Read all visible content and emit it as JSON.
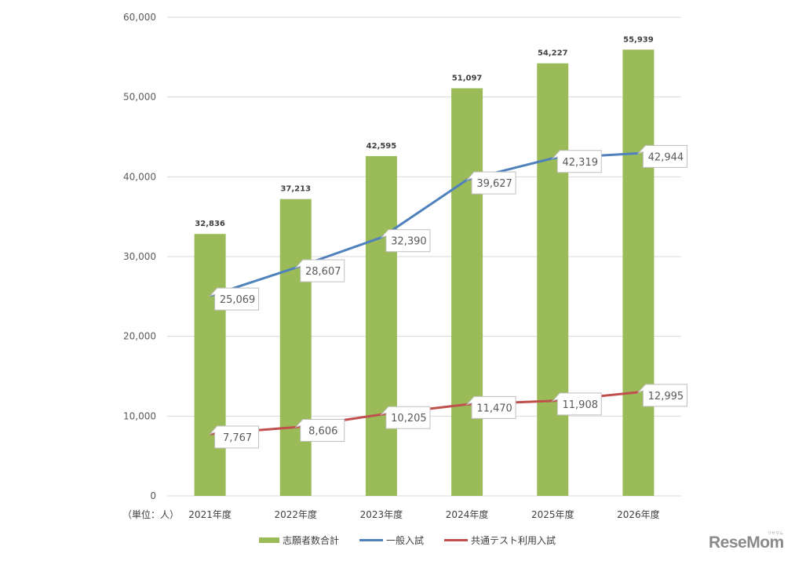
{
  "chart_data": {
    "type": "bar+line",
    "title": "",
    "unit_label": "（単位：人）",
    "categories": [
      "2021年度",
      "2022年度",
      "2023年度",
      "2024年度",
      "2025年度",
      "2026年度"
    ],
    "series": [
      {
        "name": "志願者数合計",
        "type": "bar",
        "color": "#9BBB59",
        "values": [
          32836,
          37213,
          42595,
          51097,
          54227,
          55939
        ],
        "labels": [
          "32,836",
          "37,213",
          "42,595",
          "51,097",
          "54,227",
          "55,939"
        ]
      },
      {
        "name": "一般入試",
        "type": "line",
        "color": "#4F81BD",
        "values": [
          25069,
          28607,
          32390,
          39627,
          42319,
          42944
        ],
        "labels": [
          "25,069",
          "28,607",
          "32,390",
          "39,627",
          "42,319",
          "42,944"
        ]
      },
      {
        "name": "共通テスト利用入試",
        "type": "line",
        "color": "#C0504D",
        "values": [
          7767,
          8606,
          10205,
          11470,
          11908,
          12995
        ],
        "labels": [
          "7,767",
          "8,606",
          "10,205",
          "11,470",
          "11,908",
          "12,995"
        ]
      }
    ],
    "ylim": [
      0,
      60000
    ],
    "yticks": [
      0,
      10000,
      20000,
      30000,
      40000,
      50000,
      60000
    ],
    "ytick_labels": [
      "0",
      "10,000",
      "20,000",
      "30,000",
      "40,000",
      "50,000",
      "60,000"
    ],
    "grid": true,
    "legend_position": "bottom"
  },
  "legend": {
    "items": [
      {
        "label": "志願者数合計",
        "color": "#9BBB59",
        "kind": "bar"
      },
      {
        "label": "一般入試",
        "color": "#4F81BD",
        "kind": "line"
      },
      {
        "label": "共通テスト利用入試",
        "color": "#C0504D",
        "kind": "line"
      }
    ]
  },
  "branding": {
    "logo_text": "ReseMom",
    "logo_sup": "リセマム"
  }
}
